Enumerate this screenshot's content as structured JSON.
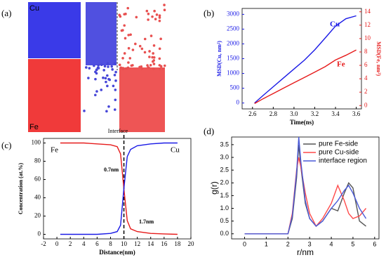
{
  "chart_data": [
    {
      "type": "simulation",
      "panel_label": "(a)",
      "labels": [
        "Cu",
        "Fe"
      ]
    },
    {
      "type": "line",
      "panel_label": "(b)",
      "xlabel": "Time(ns)",
      "ylabel": "MSD(Cu, nm²)",
      "y2label": "MSD(Fe, nm²)",
      "annotations": [
        "Cu",
        "Fe"
      ],
      "x": [
        2.62,
        2.7,
        2.8,
        2.9,
        3.0,
        3.1,
        3.2,
        3.3,
        3.4,
        3.5,
        3.6
      ],
      "series": [
        {
          "name": "Cu",
          "color": "#1a1ae6",
          "values": [
            0,
            250,
            550,
            850,
            1150,
            1450,
            1800,
            2200,
            2600,
            2850,
            2950
          ]
        },
        {
          "name": "Fe",
          "color": "#e61a1a",
          "axis": "y2",
          "values": [
            0.3,
            1.0,
            1.8,
            2.6,
            3.4,
            4.2,
            5.0,
            5.8,
            6.8,
            7.5,
            8.3
          ]
        }
      ],
      "xlim": [
        2.5,
        3.65
      ],
      "xticks": [
        2.6,
        2.8,
        {
          "value": 3,
          "label": "3.0"
        },
        3.2,
        3.4,
        3.6
      ],
      "ylim": [
        -200,
        3200
      ],
      "yticks": [
        0,
        500,
        1000,
        1500,
        2000,
        2500,
        3000
      ],
      "y2lim": [
        -0.5,
        14.5
      ],
      "y2ticks": [
        0,
        2,
        4,
        6,
        8,
        10,
        12,
        14
      ]
    },
    {
      "type": "line",
      "panel_label": "(c)",
      "xlabel": "Distance(nm)",
      "ylabel": "Concentration (at.%)",
      "annotations": [
        "Interface",
        "Fe",
        "Cu",
        "0.7nm",
        "1.7nm"
      ],
      "interface_x": 10,
      "x": [
        0.5,
        2,
        4,
        6,
        8,
        9,
        9.5,
        10,
        10.5,
        11,
        12,
        14,
        16,
        18
      ],
      "series": [
        {
          "name": "Fe",
          "color": "#e61a1a",
          "values": [
            100,
            100,
            100,
            99,
            98,
            96,
            88,
            50,
            15,
            6,
            3,
            1,
            0.5,
            0
          ]
        },
        {
          "name": "Cu",
          "color": "#1a1ae6",
          "values": [
            0,
            0,
            0,
            0,
            1,
            3,
            10,
            50,
            85,
            93,
            97,
            99,
            100,
            100
          ]
        }
      ],
      "xlim": [
        -2,
        20
      ],
      "xticks": [
        -2,
        0,
        2,
        4,
        6,
        8,
        10,
        12,
        14,
        16,
        18,
        20
      ],
      "ylim": [
        -5,
        105
      ],
      "yticks": [
        0,
        20,
        40,
        60,
        80,
        100
      ]
    },
    {
      "type": "line",
      "panel_label": "(d)",
      "xlabel": "r/nm",
      "ylabel": "g(r)",
      "legend": "upper right",
      "x": [
        0,
        1,
        2,
        2.2,
        2.4,
        2.5,
        2.6,
        2.8,
        3.0,
        3.3,
        3.6,
        4.0,
        4.3,
        4.6,
        4.8,
        5.0,
        5.3,
        5.6
      ],
      "series": [
        {
          "name": "pure Fe-side",
          "color": "#555555",
          "values": [
            0,
            0,
            0,
            0.6,
            2.2,
            3.5,
            2.6,
            1.2,
            0.6,
            0.3,
            0.5,
            1.0,
            0.9,
            1.6,
            2.0,
            1.8,
            0.5,
            0.3
          ]
        },
        {
          "name": "pure Cu-side",
          "color": "#ff4a4a",
          "values": [
            0,
            0,
            0,
            0.8,
            2.5,
            3.0,
            2.6,
            1.6,
            0.8,
            0.3,
            0.6,
            1.2,
            1.9,
            1.3,
            0.8,
            0.6,
            0.7,
            1.0
          ]
        },
        {
          "name": "interface region",
          "color": "#4a5ad8",
          "values": [
            0,
            0,
            0,
            0.7,
            2.4,
            3.8,
            2.8,
            1.3,
            0.6,
            0.3,
            0.5,
            1.0,
            1.3,
            1.7,
            1.9,
            1.6,
            1.0,
            0.6
          ]
        }
      ],
      "xlim": [
        -0.6,
        6.2
      ],
      "xticks": [
        0,
        1,
        2,
        3,
        4,
        5,
        6
      ],
      "ylim": [
        -0.2,
        3.8
      ],
      "yticks": [
        {
          "value": 0,
          "label": "0.0"
        },
        0.5,
        {
          "value": 1,
          "label": "1.0"
        },
        1.5,
        {
          "value": 2,
          "label": "2.0"
        },
        2.5,
        {
          "value": 3,
          "label": "3.0"
        },
        3.5
      ]
    }
  ]
}
